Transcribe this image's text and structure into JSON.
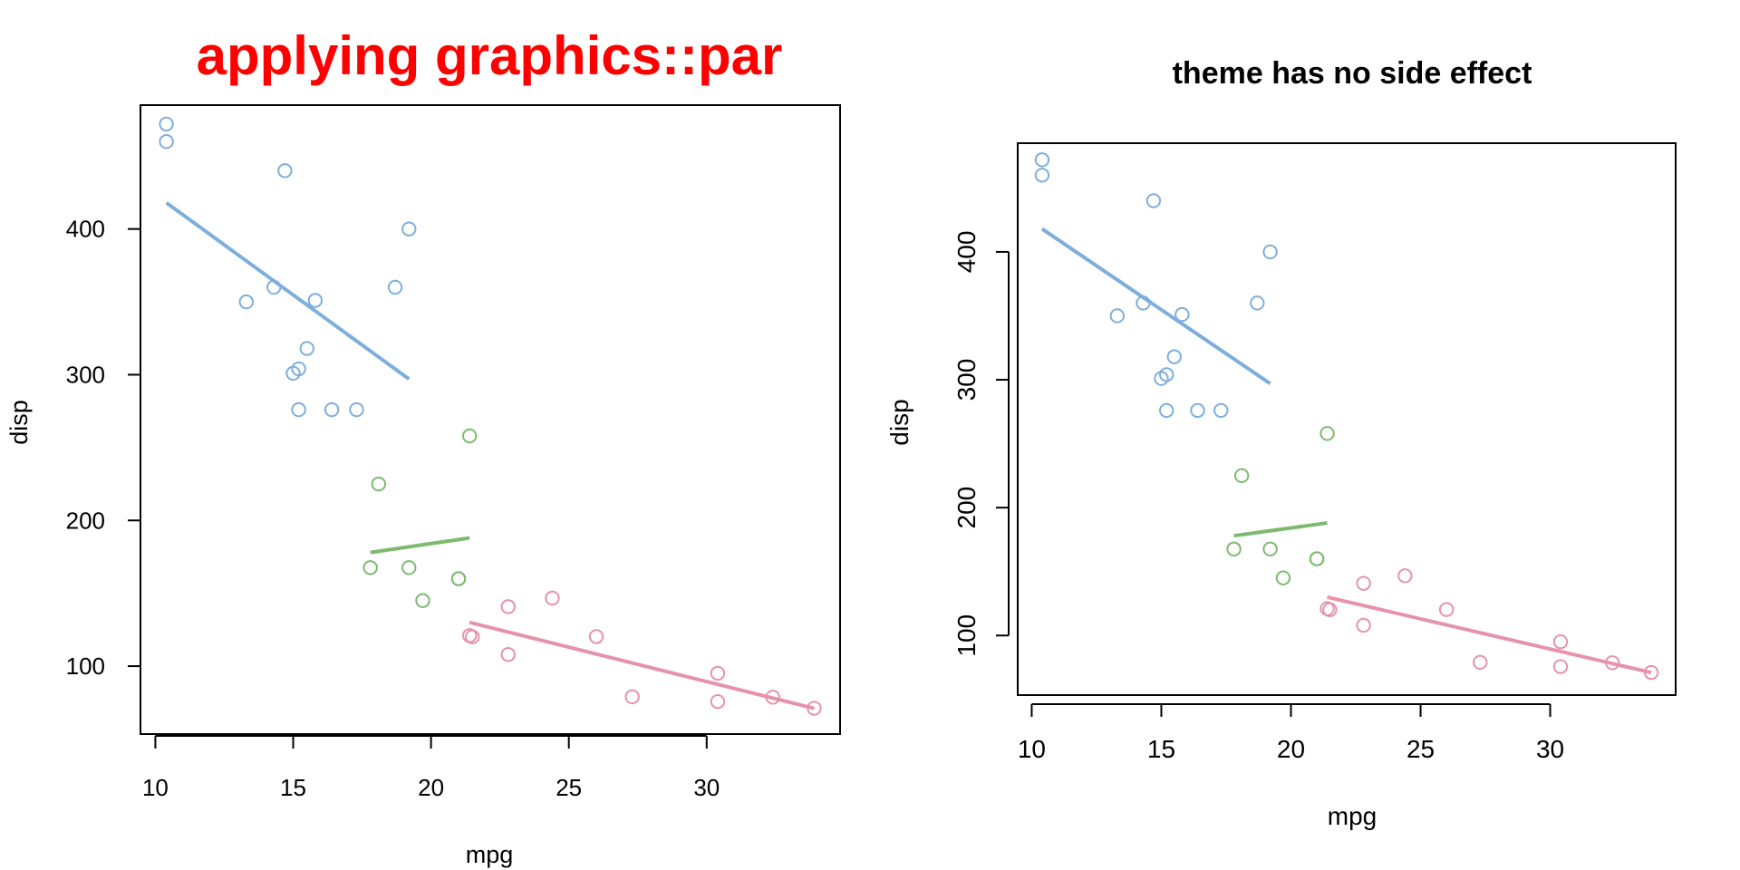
{
  "colors": {
    "group_4": "#7eaedc",
    "group_6": "#7dba6f",
    "group_8": "#e693a9",
    "left_title": "#ff0000",
    "right_title": "#000000",
    "axes": "#000000"
  },
  "chart_data": [
    {
      "type": "scatter",
      "title": "applying graphics::par",
      "xlabel": "mpg",
      "ylabel": "disp",
      "xlim": [
        9.46,
        34.84
      ],
      "ylim": [
        53.4,
        485.0
      ],
      "x_ticks": [
        10,
        15,
        20,
        25,
        30
      ],
      "y_ticks": [
        100,
        200,
        300,
        400
      ],
      "y_tick_orientation": "horizontal",
      "grid": false,
      "legend": "none",
      "series": [
        {
          "color_key": "group_4",
          "points": [
            [
              10.4,
              472
            ],
            [
              10.4,
              460
            ],
            [
              14.7,
              440
            ],
            [
              19.2,
              400
            ],
            [
              14.3,
              360
            ],
            [
              18.7,
              360
            ],
            [
              15.8,
              351
            ],
            [
              13.3,
              350
            ],
            [
              15.5,
              318
            ],
            [
              15.2,
              304
            ],
            [
              15.0,
              301
            ],
            [
              15.2,
              276
            ],
            [
              16.4,
              276
            ],
            [
              17.3,
              276
            ]
          ],
          "fit_line": [
            [
              10.4,
              418
            ],
            [
              19.2,
              297
            ]
          ]
        },
        {
          "color_key": "group_6",
          "points": [
            [
              21.4,
              258
            ],
            [
              18.1,
              225
            ],
            [
              17.8,
              167.6
            ],
            [
              19.2,
              167.6
            ],
            [
              21.0,
              160
            ],
            [
              21.0,
              160
            ],
            [
              19.7,
              145
            ]
          ],
          "fit_line": [
            [
              17.8,
              178
            ],
            [
              21.4,
              188
            ]
          ]
        },
        {
          "color_key": "group_8",
          "points": [
            [
              24.4,
              146.7
            ],
            [
              22.8,
              140.8
            ],
            [
              21.4,
              121
            ],
            [
              21.5,
              120.1
            ],
            [
              26.0,
              120.3
            ],
            [
              22.8,
              108
            ],
            [
              30.4,
              95.1
            ],
            [
              32.4,
              78.7
            ],
            [
              27.3,
              79
            ],
            [
              30.4,
              75.7
            ],
            [
              33.9,
              71.1
            ]
          ],
          "fit_line": [
            [
              21.4,
              130
            ],
            [
              33.9,
              71
            ]
          ]
        }
      ]
    },
    {
      "type": "scatter",
      "title": "theme has no side effect",
      "xlabel": "mpg",
      "ylabel": "disp",
      "xlim": [
        9.46,
        34.84
      ],
      "ylim": [
        53.4,
        485.0
      ],
      "x_ticks": [
        10,
        15,
        20,
        25,
        30
      ],
      "y_ticks": [
        100,
        200,
        300,
        400
      ],
      "y_tick_orientation": "vertical",
      "grid": false,
      "legend": "none",
      "series": [
        {
          "color_key": "group_4",
          "points": [
            [
              10.4,
              472
            ],
            [
              10.4,
              460
            ],
            [
              14.7,
              440
            ],
            [
              19.2,
              400
            ],
            [
              14.3,
              360
            ],
            [
              18.7,
              360
            ],
            [
              15.8,
              351
            ],
            [
              13.3,
              350
            ],
            [
              15.5,
              318
            ],
            [
              15.2,
              304
            ],
            [
              15.0,
              301
            ],
            [
              15.2,
              276
            ],
            [
              16.4,
              276
            ],
            [
              17.3,
              276
            ]
          ],
          "fit_line": [
            [
              10.4,
              418
            ],
            [
              19.2,
              297
            ]
          ]
        },
        {
          "color_key": "group_6",
          "points": [
            [
              21.4,
              258
            ],
            [
              18.1,
              225
            ],
            [
              17.8,
              167.6
            ],
            [
              19.2,
              167.6
            ],
            [
              21.0,
              160
            ],
            [
              21.0,
              160
            ],
            [
              19.7,
              145
            ]
          ],
          "fit_line": [
            [
              17.8,
              178
            ],
            [
              21.4,
              188
            ]
          ]
        },
        {
          "color_key": "group_8",
          "points": [
            [
              24.4,
              146.7
            ],
            [
              22.8,
              140.8
            ],
            [
              21.4,
              121
            ],
            [
              21.5,
              120.1
            ],
            [
              26.0,
              120.3
            ],
            [
              22.8,
              108
            ],
            [
              30.4,
              95.1
            ],
            [
              32.4,
              78.7
            ],
            [
              27.3,
              79
            ],
            [
              30.4,
              75.7
            ],
            [
              33.9,
              71.1
            ]
          ],
          "fit_line": [
            [
              21.4,
              130
            ],
            [
              33.9,
              71
            ]
          ]
        }
      ]
    }
  ]
}
